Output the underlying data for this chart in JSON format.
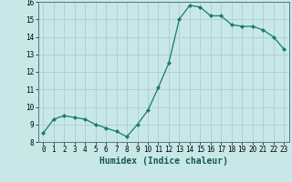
{
  "title": "",
  "xlabel": "Humidex (Indice chaleur)",
  "ylabel": "",
  "x": [
    0,
    1,
    2,
    3,
    4,
    5,
    6,
    7,
    8,
    9,
    10,
    11,
    12,
    13,
    14,
    15,
    16,
    17,
    18,
    19,
    20,
    21,
    22,
    23
  ],
  "y": [
    8.5,
    9.3,
    9.5,
    9.4,
    9.3,
    9.0,
    8.8,
    8.6,
    8.3,
    9.0,
    9.8,
    11.1,
    12.5,
    15.0,
    15.8,
    15.7,
    15.2,
    15.2,
    14.7,
    14.6,
    14.6,
    14.4,
    14.0,
    13.3
  ],
  "line_color": "#1a7a6a",
  "marker": "D",
  "marker_size": 2.0,
  "bg_color": "#c8e8e8",
  "grid_color": "#b0cccc",
  "ylim": [
    8,
    16
  ],
  "xlim": [
    -0.5,
    23.5
  ],
  "yticks": [
    8,
    9,
    10,
    11,
    12,
    13,
    14,
    15,
    16
  ],
  "xticks": [
    0,
    1,
    2,
    3,
    4,
    5,
    6,
    7,
    8,
    9,
    10,
    11,
    12,
    13,
    14,
    15,
    16,
    17,
    18,
    19,
    20,
    21,
    22,
    23
  ],
  "tick_labelsize": 5.5,
  "xlabel_fontsize": 7.0,
  "line_width": 0.9
}
